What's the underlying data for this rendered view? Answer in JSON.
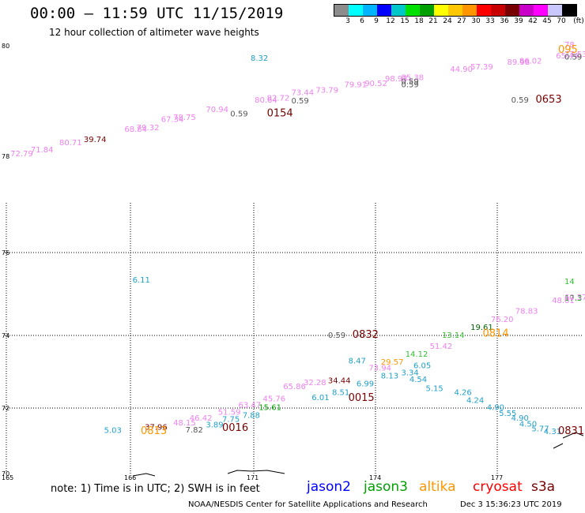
{
  "title": "00:00 – 11:59 UTC 11/15/2019",
  "subtitle": "12 hour collection of altimeter wave heights",
  "legend": {
    "unit": "(ft)",
    "colors": [
      "#8c8c8c",
      "#00ffff",
      "#00b4ff",
      "#0000ff",
      "#00c8c8",
      "#00e000",
      "#00a000",
      "#ffff00",
      "#ffc800",
      "#ff9600",
      "#ff0000",
      "#c80000",
      "#780000",
      "#c800c8",
      "#ff00ff",
      "#c8c8ff",
      "#000000"
    ],
    "ticks": [
      "3",
      "6",
      "9",
      "12",
      "15",
      "18",
      "21",
      "24",
      "27",
      "30",
      "33",
      "36",
      "39",
      "42",
      "45",
      "70"
    ]
  },
  "axes": {
    "lat_labels": [
      "80",
      "78",
      "76",
      "74",
      "72",
      "70"
    ],
    "lon_labels": [
      "165",
      "166",
      "171",
      "174",
      "177"
    ]
  },
  "markers": [
    {
      "t": "8.32",
      "c": "#20a0c8",
      "lon": 170.5,
      "lat": 79.73
    },
    {
      "t": "72.79",
      "c": "#ee82ee",
      "lon": 164.6,
      "lat": 78.0
    },
    {
      "t": "71.84",
      "c": "#ee82ee",
      "lon": 165.1,
      "lat": 78.07
    },
    {
      "t": "80.71",
      "c": "#ee82ee",
      "lon": 165.8,
      "lat": 78.2
    },
    {
      "t": "39.74",
      "c": "#780000",
      "lon": 166.4,
      "lat": 78.26
    },
    {
      "t": "68.84",
      "c": "#ee82ee",
      "lon": 167.4,
      "lat": 78.44
    },
    {
      "t": "79.32",
      "c": "#ee82ee",
      "lon": 167.7,
      "lat": 78.47
    },
    {
      "t": "67.34",
      "c": "#ee82ee",
      "lon": 168.3,
      "lat": 78.62
    },
    {
      "t": "78.75",
      "c": "#ee82ee",
      "lon": 168.6,
      "lat": 78.66
    },
    {
      "t": "70.94",
      "c": "#ee82ee",
      "lon": 169.4,
      "lat": 78.8
    },
    {
      "t": "0.59",
      "c": "#555555",
      "lon": 170.0,
      "lat": 78.72
    },
    {
      "t": "0154",
      "c": "#780000",
      "lon": 170.9,
      "lat": 78.72,
      "big": true
    },
    {
      "t": "80.64",
      "c": "#ee82ee",
      "lon": 170.6,
      "lat": 78.97
    },
    {
      "t": "82.72",
      "c": "#ee82ee",
      "lon": 170.9,
      "lat": 79.01
    },
    {
      "t": "0.59",
      "c": "#555555",
      "lon": 171.5,
      "lat": 78.96
    },
    {
      "t": "73.44",
      "c": "#ee82ee",
      "lon": 171.5,
      "lat": 79.11
    },
    {
      "t": "73.79",
      "c": "#ee82ee",
      "lon": 172.1,
      "lat": 79.15
    },
    {
      "t": "79.91",
      "c": "#ee82ee",
      "lon": 172.8,
      "lat": 79.25
    },
    {
      "t": "90.52",
      "c": "#ee82ee",
      "lon": 173.3,
      "lat": 79.27
    },
    {
      "t": "98.93",
      "c": "#ee82ee",
      "lon": 173.8,
      "lat": 79.36
    },
    {
      "t": "85.38",
      "c": "#ee82ee",
      "lon": 174.2,
      "lat": 79.38
    },
    {
      "t": "0.59",
      "c": "#555555",
      "lon": 174.2,
      "lat": 79.31
    },
    {
      "t": "0.59",
      "c": "#555555",
      "lon": 174.2,
      "lat": 79.25
    },
    {
      "t": "44.90",
      "c": "#ee82ee",
      "lon": 175.4,
      "lat": 79.53
    },
    {
      "t": "57.39",
      "c": "#ee82ee",
      "lon": 175.9,
      "lat": 79.57
    },
    {
      "t": "89.98",
      "c": "#ee82ee",
      "lon": 176.8,
      "lat": 79.66
    },
    {
      "t": "86.02",
      "c": "#ee82ee",
      "lon": 177.1,
      "lat": 79.68
    },
    {
      "t": "0.59",
      "c": "#555555",
      "lon": 176.9,
      "lat": 78.97
    },
    {
      "t": "0653",
      "c": "#780000",
      "lon": 177.5,
      "lat": 78.97,
      "big": true
    },
    {
      "t": "65.44",
      "c": "#ee82ee",
      "lon": 178.0,
      "lat": 79.77
    },
    {
      "t": "77.53",
      "c": "#ee82ee",
      "lon": 178.6,
      "lat": 79.8
    },
    {
      "t": "0.59",
      "c": "#555555",
      "lon": 179.2,
      "lat": 79.75
    },
    {
      "t": "78",
      "c": "#ee82ee",
      "lon": 179.4,
      "lat": 79.97
    },
    {
      "t": "095",
      "c": "#ff9600",
      "lon": 179.2,
      "lat": 79.87,
      "big": true
    },
    {
      "t": "6.11",
      "c": "#20a0c8",
      "lon": 167.6,
      "lat": 74.8
    },
    {
      "t": "0.59",
      "c": "#555555",
      "lon": 172.4,
      "lat": 73.4
    },
    {
      "t": "0832",
      "c": "#780000",
      "lon": 173.0,
      "lat": 73.4,
      "big": true
    },
    {
      "t": "14",
      "c": "#33c033",
      "lon": 179.6,
      "lat": 74.76
    },
    {
      "t": "17.3",
      "c": "#00a000",
      "lon": 179.4,
      "lat": 74.34
    },
    {
      "t": "60.57",
      "c": "#ee82ee",
      "lon": 178.6,
      "lat": 74.36
    },
    {
      "t": "48.01",
      "c": "#ee82ee",
      "lon": 177.9,
      "lat": 74.28
    },
    {
      "t": "78.83",
      "c": "#ee82ee",
      "lon": 177.0,
      "lat": 74.01
    },
    {
      "t": "76.20",
      "c": "#ee82ee",
      "lon": 176.4,
      "lat": 73.8
    },
    {
      "t": "19.61",
      "c": "#006400",
      "lon": 175.9,
      "lat": 73.6
    },
    {
      "t": "0814",
      "c": "#ff9600",
      "lon": 176.2,
      "lat": 73.43,
      "big": true
    },
    {
      "t": "13.14",
      "c": "#33c033",
      "lon": 175.2,
      "lat": 73.4
    },
    {
      "t": "51.42",
      "c": "#ee82ee",
      "lon": 174.9,
      "lat": 73.12
    },
    {
      "t": "14.12",
      "c": "#33c033",
      "lon": 174.3,
      "lat": 72.92
    },
    {
      "t": "8.47",
      "c": "#20a0c8",
      "lon": 172.9,
      "lat": 72.75
    },
    {
      "t": "29.57",
      "c": "#ff9600",
      "lon": 173.7,
      "lat": 72.72
    },
    {
      "t": "6.05",
      "c": "#20a0c8",
      "lon": 174.5,
      "lat": 72.63
    },
    {
      "t": "73.94",
      "c": "#ee82ee",
      "lon": 173.4,
      "lat": 72.57
    },
    {
      "t": "3.34",
      "c": "#20a0c8",
      "lon": 174.2,
      "lat": 72.45
    },
    {
      "t": "34.44",
      "c": "#780000",
      "lon": 172.4,
      "lat": 72.25
    },
    {
      "t": "8.13",
      "c": "#20a0c8",
      "lon": 173.7,
      "lat": 72.37
    },
    {
      "t": "4.54",
      "c": "#20a0c8",
      "lon": 174.4,
      "lat": 72.28
    },
    {
      "t": "32.28",
      "c": "#ee82ee",
      "lon": 171.8,
      "lat": 72.2
    },
    {
      "t": "6.99",
      "c": "#20a0c8",
      "lon": 173.1,
      "lat": 72.17
    },
    {
      "t": "5.15",
      "c": "#20a0c8",
      "lon": 174.8,
      "lat": 72.05
    },
    {
      "t": "65.86",
      "c": "#ee82ee",
      "lon": 171.3,
      "lat": 72.1
    },
    {
      "t": "8.51",
      "c": "#20a0c8",
      "lon": 172.5,
      "lat": 71.95
    },
    {
      "t": "4.26",
      "c": "#20a0c8",
      "lon": 175.5,
      "lat": 71.95
    },
    {
      "t": "6.01",
      "c": "#20a0c8",
      "lon": 172.0,
      "lat": 71.82
    },
    {
      "t": "0015",
      "c": "#780000",
      "lon": 172.9,
      "lat": 71.8,
      "big": true
    },
    {
      "t": "45.76",
      "c": "#ee82ee",
      "lon": 170.8,
      "lat": 71.79
    },
    {
      "t": "4.24",
      "c": "#20a0c8",
      "lon": 175.8,
      "lat": 71.75
    },
    {
      "t": "63.47",
      "c": "#ee82ee",
      "lon": 170.2,
      "lat": 71.63
    },
    {
      "t": "15.61",
      "c": "#00a000",
      "lon": 170.7,
      "lat": 71.57
    },
    {
      "t": "4.90",
      "c": "#20a0c8",
      "lon": 176.3,
      "lat": 71.57
    },
    {
      "t": "51.59",
      "c": "#ee82ee",
      "lon": 169.7,
      "lat": 71.45
    },
    {
      "t": "7.88",
      "c": "#20a0c8",
      "lon": 170.3,
      "lat": 71.37
    },
    {
      "t": "5.55",
      "c": "#20a0c8",
      "lon": 176.6,
      "lat": 71.42
    },
    {
      "t": "46.42",
      "c": "#ee82ee",
      "lon": 169.0,
      "lat": 71.3
    },
    {
      "t": "7.75",
      "c": "#20a0c8",
      "lon": 169.8,
      "lat": 71.27
    },
    {
      "t": "4.90",
      "c": "#20a0c8",
      "lon": 176.9,
      "lat": 71.3
    },
    {
      "t": "48.15",
      "c": "#ee82ee",
      "lon": 168.6,
      "lat": 71.18
    },
    {
      "t": "3.89",
      "c": "#20a0c8",
      "lon": 169.4,
      "lat": 71.13
    },
    {
      "t": "4.50",
      "c": "#20a0c8",
      "lon": 177.1,
      "lat": 71.15
    },
    {
      "t": "37.96",
      "c": "#780000",
      "lon": 167.9,
      "lat": 71.07
    },
    {
      "t": "7.82",
      "c": "#555555",
      "lon": 168.9,
      "lat": 71.0
    },
    {
      "t": "0016",
      "c": "#780000",
      "lon": 169.8,
      "lat": 71.04,
      "big": true
    },
    {
      "t": "5.77",
      "c": "#20a0c8",
      "lon": 177.4,
      "lat": 71.03
    },
    {
      "t": "5.03",
      "c": "#20a0c8",
      "lon": 166.9,
      "lat": 70.99
    },
    {
      "t": "0813",
      "c": "#ff9600",
      "lon": 167.8,
      "lat": 70.96,
      "big": true
    },
    {
      "t": "4.31",
      "c": "#20a0c8",
      "lon": 177.7,
      "lat": 70.96
    },
    {
      "t": "0831",
      "c": "#780000",
      "lon": 178.9,
      "lat": 70.96,
      "big": true
    }
  ],
  "note": "note: 1) Time is in UTC; 2) SWH is in feet",
  "satellites": [
    {
      "name": "jason2",
      "color": "#0000ff"
    },
    {
      "name": "jason3",
      "color": "#00a000"
    },
    {
      "name": "altika",
      "color": "#ff9600"
    },
    {
      "name": "cryosat",
      "color": "#ff0000"
    },
    {
      "name": "s3a",
      "color": "#780000"
    }
  ],
  "credit": "NOAA/NESDIS Center for Satellite Applications and Research",
  "timestamp": "Dec  3 15:36:23 UTC 2019"
}
